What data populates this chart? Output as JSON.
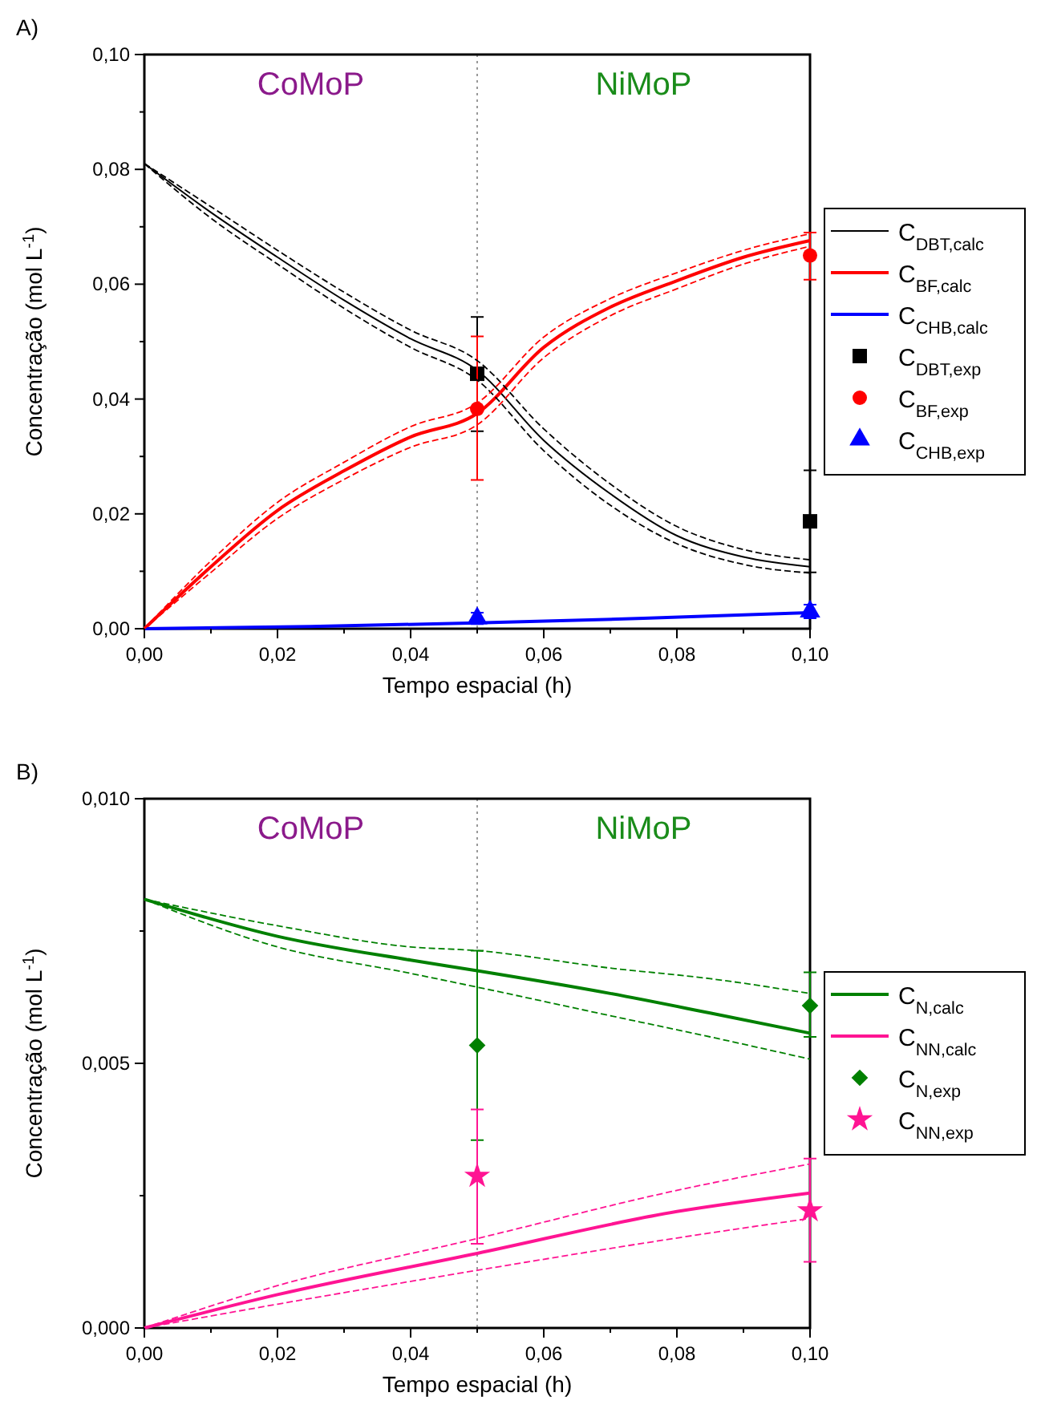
{
  "chart_data": [
    {
      "type": "line",
      "title": "A)",
      "xlabel": "Tempo espacial (h)",
      "ylabel": "Concentração (mol L$^{-1}$)",
      "xlim": [
        0,
        0.1
      ],
      "ylim": [
        0,
        0.1
      ],
      "xticks": [
        {
          "value": 0,
          "label": "0,00"
        },
        {
          "value": 0.02,
          "label": "0,02"
        },
        {
          "value": 0.04,
          "label": "0,04"
        },
        {
          "value": 0.06,
          "label": "0,06"
        },
        {
          "value": 0.08,
          "label": "0,08"
        },
        {
          "value": 0.1,
          "label": "0,10"
        }
      ],
      "yticks": [
        {
          "value": 0,
          "label": "0,00"
        },
        {
          "value": 0.02,
          "label": "0,02"
        },
        {
          "value": 0.04,
          "label": "0,04"
        },
        {
          "value": 0.06,
          "label": "0,06"
        },
        {
          "value": 0.08,
          "label": "0,08"
        },
        {
          "value": 0.1,
          "label": "0,10"
        }
      ],
      "legend": "right",
      "ref_lines": [
        {
          "axis": "x",
          "value": 0.05,
          "label": null,
          "color": "#999999",
          "line_style": "dotted"
        }
      ],
      "annotations": [
        "CoMoP",
        "NiMoP"
      ],
      "series": [
        {
          "name": "C$_{DBT,calc}$",
          "color": "#000000",
          "marker": "none",
          "x": [
            0,
            0.01,
            0.02,
            0.03,
            0.04,
            0.05,
            0.06,
            0.07,
            0.08,
            0.09,
            0.1
          ],
          "values": [
            0.081,
            0.0725,
            0.0647,
            0.0572,
            0.0505,
            0.045,
            0.0328,
            0.0235,
            0.0162,
            0.0125,
            0.0108
          ]
        },
        {
          "name": "C$_{BF,calc}$",
          "color": "#ff0000",
          "marker": "none",
          "x": [
            0,
            0.01,
            0.02,
            0.03,
            0.04,
            0.05,
            0.06,
            0.07,
            0.08,
            0.09,
            0.1
          ],
          "values": [
            0,
            0.0108,
            0.0206,
            0.0275,
            0.0334,
            0.0375,
            0.049,
            0.056,
            0.0606,
            0.0647,
            0.0676
          ]
        },
        {
          "name": "C$_{CHB,calc}$",
          "color": "#0000ff",
          "marker": "none",
          "x": [
            0,
            0.025,
            0.05,
            0.075,
            0.1
          ],
          "values": [
            0,
            0.0004,
            0.001,
            0.0018,
            0.0028
          ]
        },
        {
          "name": "C$_{DBT,exp}$",
          "type": "scatter",
          "color": "#000000",
          "marker": "square",
          "x": [
            0.05,
            0.1
          ],
          "values": [
            0.0444,
            0.0187
          ],
          "errors": [
            [
              0.0344,
              0.0543
            ],
            [
              0.0098,
              0.0276
            ]
          ]
        },
        {
          "name": "C$_{BF,exp}$",
          "type": "scatter",
          "color": "#ff0000",
          "marker": "circle",
          "x": [
            0.05,
            0.1
          ],
          "values": [
            0.0383,
            0.065
          ],
          "errors": [
            [
              0.0259,
              0.0509
            ],
            [
              0.0608,
              0.069
            ]
          ]
        },
        {
          "name": "C$_{CHB,exp}$",
          "type": "scatter",
          "color": "#0000ff",
          "marker": "triangle",
          "x": [
            0.05,
            0.1
          ],
          "values": [
            0.0018,
            0.003
          ],
          "errors": [
            [
              0.0008,
              0.0028
            ],
            [
              0.0018,
              0.0042
            ]
          ]
        },
        {
          "color": "#000000",
          "marker": "none",
          "line_style": "dashed",
          "x": [
            0,
            0.01,
            0.02,
            0.03,
            0.04,
            0.05,
            0.06,
            0.07,
            0.08,
            0.09,
            0.1
          ],
          "values": [
            0.081,
            0.0715,
            0.0635,
            0.0558,
            0.049,
            0.0433,
            0.031,
            0.0215,
            0.0148,
            0.0112,
            0.0097
          ]
        },
        {
          "color": "#000000",
          "marker": "none",
          "line_style": "dashed",
          "x": [
            0,
            0.01,
            0.02,
            0.03,
            0.04,
            0.05,
            0.06,
            0.07,
            0.08,
            0.09,
            0.1
          ],
          "values": [
            0.081,
            0.0735,
            0.0659,
            0.0586,
            0.052,
            0.0467,
            0.0348,
            0.0252,
            0.0178,
            0.0138,
            0.012
          ]
        },
        {
          "color": "#ff0000",
          "marker": "none",
          "line_style": "dashed",
          "x": [
            0,
            0.01,
            0.02,
            0.03,
            0.04,
            0.05,
            0.06,
            0.07,
            0.08,
            0.09,
            0.1
          ],
          "values": [
            0,
            0.0098,
            0.0192,
            0.026,
            0.0316,
            0.0355,
            0.0472,
            0.0545,
            0.0592,
            0.0635,
            0.0666
          ]
        },
        {
          "color": "#ff0000",
          "marker": "none",
          "line_style": "dashed",
          "x": [
            0,
            0.01,
            0.02,
            0.03,
            0.04,
            0.05,
            0.06,
            0.07,
            0.08,
            0.09,
            0.1
          ],
          "values": [
            0,
            0.0118,
            0.022,
            0.029,
            0.0352,
            0.0393,
            0.0508,
            0.0575,
            0.062,
            0.0659,
            0.0688
          ]
        }
      ]
    },
    {
      "type": "line",
      "title": "B)",
      "xlabel": "Tempo espacial (h)",
      "ylabel": "Concentração (mol L$^{-1}$)",
      "xlim": [
        0,
        0.1
      ],
      "ylim": [
        0,
        0.01
      ],
      "xticks": [
        {
          "value": 0,
          "label": "0,00"
        },
        {
          "value": 0.02,
          "label": "0,02"
        },
        {
          "value": 0.04,
          "label": "0,04"
        },
        {
          "value": 0.06,
          "label": "0,06"
        },
        {
          "value": 0.08,
          "label": "0,08"
        },
        {
          "value": 0.1,
          "label": "0,10"
        }
      ],
      "yticks": [
        {
          "value": 0,
          "label": "0,000"
        },
        {
          "value": 0.005,
          "label": "0,005"
        },
        {
          "value": 0.01,
          "label": "0,010"
        }
      ],
      "legend": "right",
      "ref_lines": [
        {
          "axis": "x",
          "value": 0.05,
          "label": null,
          "color": "#999999",
          "line_style": "dotted"
        }
      ],
      "annotations": [
        "CoMoP",
        "NiMoP"
      ],
      "series": [
        {
          "name": "C$_{N,calc}$",
          "color": "#008000",
          "marker": "none",
          "x": [
            0,
            0.02,
            0.04,
            0.05,
            0.07,
            0.085,
            0.1
          ],
          "values": [
            0.0081,
            0.0074,
            0.00695,
            0.00675,
            0.00632,
            0.00595,
            0.00557
          ]
        },
        {
          "name": "C$_{NN,calc}$",
          "color": "#ff1493",
          "marker": "none",
          "x": [
            0,
            0.02,
            0.05,
            0.08,
            0.1
          ],
          "values": [
            0,
            0.00063,
            0.00141,
            0.0022,
            0.00255
          ]
        },
        {
          "name": "C$_{N,exp}$",
          "type": "scatter",
          "color": "#008000",
          "marker": "diamond",
          "x": [
            0.05,
            0.1
          ],
          "values": [
            0.00534,
            0.00609
          ],
          "errors": [
            [
              0.00355,
              0.00713
            ],
            [
              0.0055,
              0.00672
            ]
          ]
        },
        {
          "name": "C$_{NN,exp}$",
          "type": "scatter",
          "color": "#ff1493",
          "marker": "star",
          "x": [
            0.05,
            0.1
          ],
          "values": [
            0.00287,
            0.00222
          ],
          "errors": [
            [
              0.00159,
              0.00413
            ],
            [
              0.00125,
              0.0032
            ]
          ]
        },
        {
          "color": "#008000",
          "marker": "none",
          "line_style": "dashed",
          "x": [
            0,
            0.02,
            0.04,
            0.05,
            0.07,
            0.085,
            0.1
          ],
          "values": [
            0.0081,
            0.0072,
            0.0067,
            0.00644,
            0.0059,
            0.0055,
            0.00508
          ]
        },
        {
          "color": "#008000",
          "marker": "none",
          "line_style": "dashed",
          "x": [
            0,
            0.02,
            0.04,
            0.05,
            0.07,
            0.085,
            0.1
          ],
          "values": [
            0.0081,
            0.0076,
            0.0072,
            0.00713,
            0.0068,
            0.0066,
            0.00632
          ]
        },
        {
          "color": "#ff1493",
          "marker": "none",
          "line_style": "dashed",
          "x": [
            0,
            0.02,
            0.05,
            0.08,
            0.1
          ],
          "values": [
            0,
            0.00045,
            0.00109,
            0.0017,
            0.00207
          ]
        },
        {
          "color": "#ff1493",
          "marker": "none",
          "line_style": "dashed",
          "x": [
            0,
            0.02,
            0.05,
            0.08,
            0.1
          ],
          "values": [
            0,
            0.0008,
            0.00169,
            0.0026,
            0.0031
          ]
        }
      ]
    }
  ]
}
